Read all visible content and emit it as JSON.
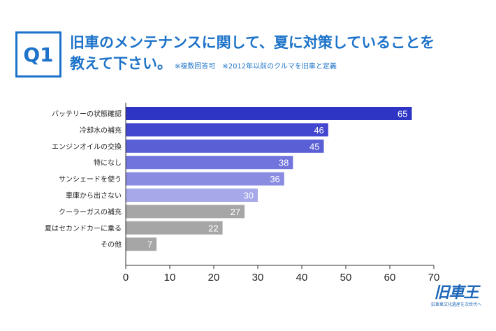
{
  "header": {
    "badge": "Q1",
    "title_line1": "旧車のメンテナンスに関して、夏に対策していることを",
    "title_line2": "教えて下さい。",
    "note": "※複数回答可　※2012年以前のクルマを旧車と定義"
  },
  "logo": {
    "main": "旧車王",
    "sub": "旧車車文化遺産を次世代へ"
  },
  "colors": {
    "title": "#1d73c9",
    "bars": [
      "#2e35c5",
      "#4347cf",
      "#5a5fd6",
      "#7174dc",
      "#8a8ce2",
      "#a6a8ea",
      "#a6a6a6",
      "#a6a6a6",
      "#a6a6a6"
    ],
    "axis": "#333333"
  },
  "chart_data": {
    "type": "bar",
    "orientation": "horizontal",
    "categories": [
      "バッテリーの状態確認",
      "冷却水の補充",
      "エンジンオイルの交換",
      "特になし",
      "サンシェードを使う",
      "車庫から出さない",
      "クーラーガスの補充",
      "夏はセカンドカーに乗る",
      "その他"
    ],
    "values": [
      65,
      46,
      45,
      38,
      36,
      30,
      27,
      22,
      7
    ],
    "xlim": [
      0,
      70
    ],
    "xticks": [
      0,
      10,
      20,
      30,
      40,
      50,
      60,
      70
    ],
    "grid": false,
    "xlabel": "",
    "ylabel": ""
  }
}
